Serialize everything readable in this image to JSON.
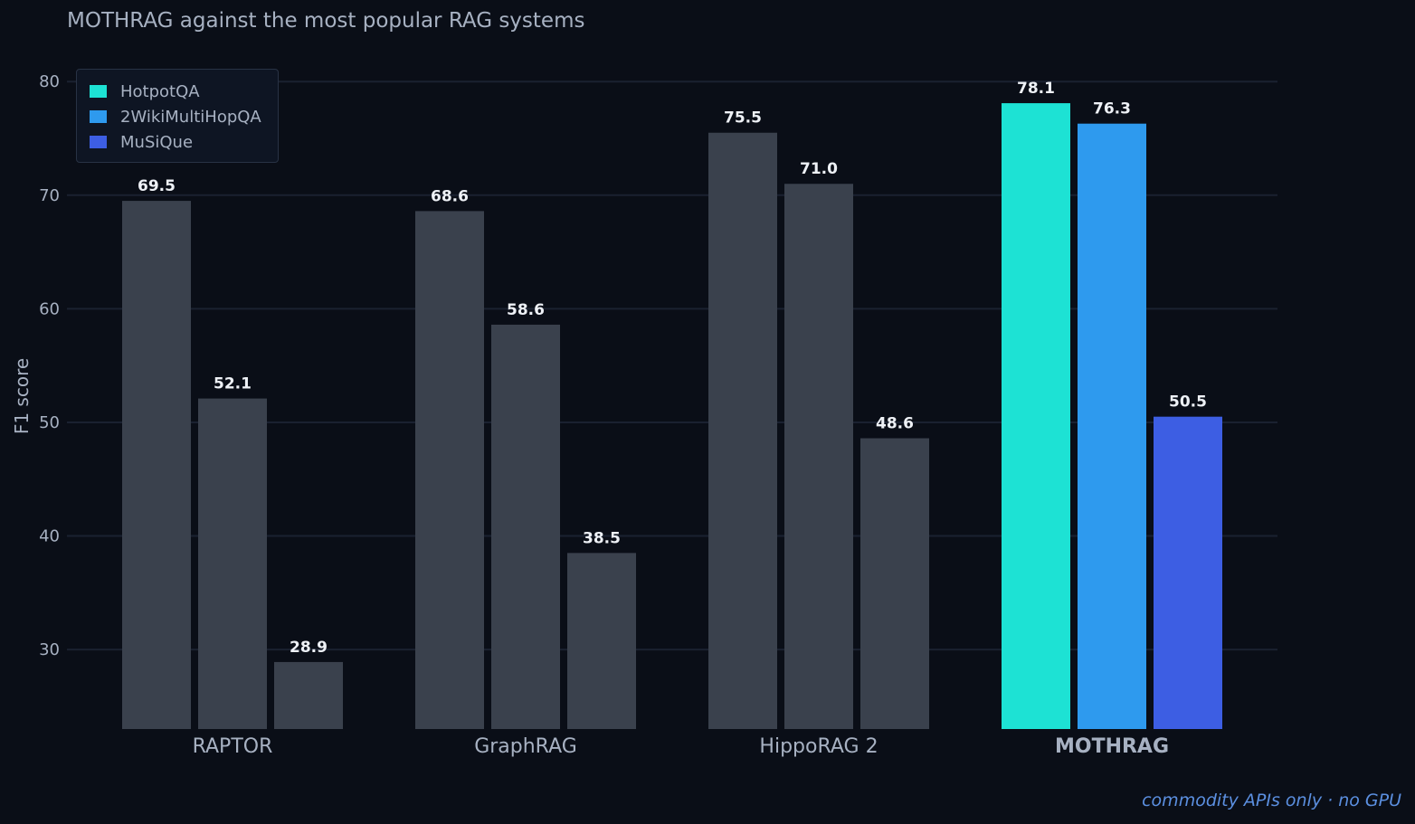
{
  "chart_data": {
    "type": "bar",
    "title": "MOTHRAG against the most popular RAG systems",
    "xlabel": "",
    "ylabel": "F1 score",
    "ylim": [
      23,
      84
    ],
    "yticks": [
      30,
      40,
      50,
      60,
      70,
      80
    ],
    "grid": true,
    "legend_position": "top-left",
    "categories": [
      "RAPTOR",
      "GraphRAG",
      "HippoRAG 2",
      "MOTHRAG"
    ],
    "highlight_category": "MOTHRAG",
    "series": [
      {
        "name": "HotpotQA",
        "color": "#1de2d4",
        "values": [
          69.5,
          68.6,
          75.5,
          78.1
        ]
      },
      {
        "name": "2WikiMultiHopQA",
        "color": "#2e9aee",
        "values": [
          52.1,
          58.6,
          71.0,
          76.3
        ]
      },
      {
        "name": "MuSiQue",
        "color": "#3d5ee3",
        "values": [
          28.9,
          38.5,
          48.6,
          50.5
        ]
      }
    ],
    "muted_color": "#3a414d",
    "annotation": "commodity APIs only · no GPU"
  }
}
